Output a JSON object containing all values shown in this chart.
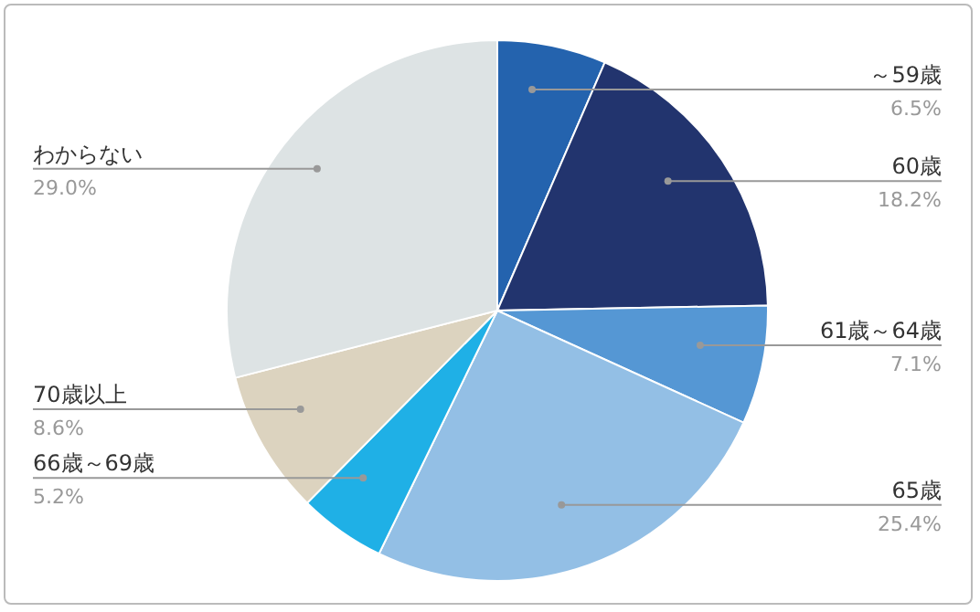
{
  "chart_data": {
    "type": "pie",
    "categories": [
      "～59歳",
      "60歳",
      "61歳～64歳",
      "65歳",
      "66歳～69歳",
      "70歳以上",
      "わからない"
    ],
    "values": [
      6.5,
      18.2,
      7.1,
      25.4,
      5.2,
      8.6,
      29.0
    ],
    "colors": [
      "#2463ae",
      "#22346e",
      "#5597d4",
      "#93bfe5",
      "#1fb0e6",
      "#dcd3bf",
      "#dde3e4"
    ],
    "value_labels": [
      "6.5%",
      "18.2%",
      "7.1%",
      "25.4%",
      "5.2%",
      "8.6%",
      "29.0%"
    ],
    "legend": false
  }
}
